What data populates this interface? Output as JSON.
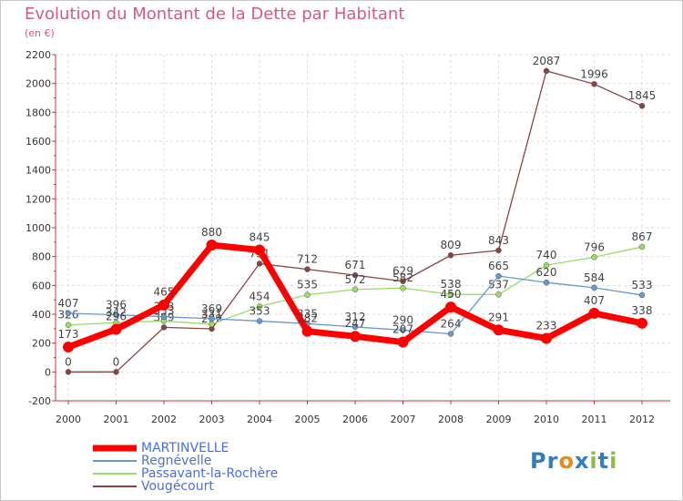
{
  "title": "Evolution du Montant de la Dette par Habitant",
  "subtitle": "(en €)",
  "logo": {
    "text": "Proxiti",
    "letters": [
      "P",
      "r",
      "o",
      "x",
      "i",
      "t",
      "i"
    ],
    "colors": [
      "#2f7fc1",
      "#2f7fc1",
      "#e98a1d",
      "#2f7fc1",
      "#8cbe3e",
      "#2f7fc1",
      "#8cbe3e"
    ]
  },
  "chart_data": {
    "type": "line",
    "title": "Evolution du Montant de la Dette par Habitant",
    "ylabel": "(en €)",
    "xlabel": "",
    "x": [
      "2000",
      "2001",
      "2002",
      "2003",
      "2004",
      "2005",
      "2006",
      "2007",
      "2008",
      "2009",
      "2010",
      "2011",
      "2012"
    ],
    "ylim": [
      -200,
      2200
    ],
    "yticks": [
      -200,
      0,
      200,
      400,
      600,
      800,
      1000,
      1200,
      1400,
      1600,
      1800,
      2000,
      2200
    ],
    "grid": true,
    "legend_position": "bottom",
    "series": [
      {
        "name": "MARTINVELLE",
        "color": "#ff0000",
        "values": [
          173,
          296,
          465,
          880,
          845,
          282,
          247,
          207,
          450,
          291,
          233,
          407,
          338
        ]
      },
      {
        "name": "Regnévelle",
        "color": "#6699cc",
        "values": [
          407,
          396,
          383,
          369,
          353,
          335,
          312,
          290,
          264,
          665,
          620,
          584,
          533
        ]
      },
      {
        "name": "Passavant-la-Rochère",
        "color": "#99dd66",
        "values": [
          326,
          342,
          353,
          331,
          454,
          535,
          572,
          582,
          538,
          537,
          740,
          796,
          867
        ]
      },
      {
        "name": "Vougécourt",
        "color": "#884444",
        "values": [
          0,
          0,
          309,
          299,
          751,
          712,
          671,
          629,
          809,
          843,
          2087,
          1996,
          1845
        ]
      }
    ]
  }
}
